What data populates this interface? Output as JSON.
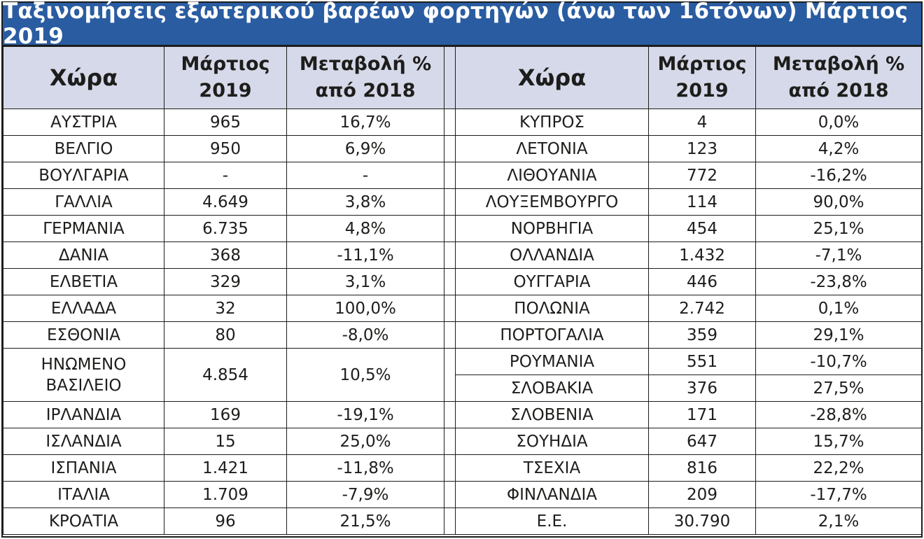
{
  "title": "Ταξινομήσεις εξωτερικού βαρέων φορτηγών (άνω των 16τόνων) Μάρτιος 2019",
  "headers": {
    "country": "Χώρα",
    "month_line1": "Μάρτιος",
    "month_line2": "2019",
    "change_line1": "Μεταβολή %",
    "change_line2": "από 2018"
  },
  "left_rows": [
    {
      "country": "ΑΥΣΤΡΙΑ",
      "value": "965",
      "change": "16,7%"
    },
    {
      "country": "ΒΕΛΓΙΟ",
      "value": "950",
      "change": "6,9%"
    },
    {
      "country": "ΒΟΥΛΓΑΡΙΑ",
      "value": "-",
      "change": "-"
    },
    {
      "country": "ΓΑΛΛΙΑ",
      "value": "4.649",
      "change": "3,8%"
    },
    {
      "country": "ΓΕΡΜΑΝΙΑ",
      "value": "6.735",
      "change": "4,8%"
    },
    {
      "country": "ΔΑΝΙΑ",
      "value": "368",
      "change": "-11,1%"
    },
    {
      "country": "ΕΛΒΕΤΙΑ",
      "value": "329",
      "change": "3,1%"
    },
    {
      "country": "ΕΛΛΑΔΑ",
      "value": "32",
      "change": "100,0%"
    },
    {
      "country": "ΕΣΘΟΝΙΑ",
      "value": "80",
      "change": "-8,0%"
    },
    {
      "country_line1": "ΗΝΩΜΕΝΟ",
      "country_line2": "ΒΑΣΙΛΕΙΟ",
      "value": "4.854",
      "change": "10,5%"
    },
    {
      "country": "ΙΡΛΑΝΔΙΑ",
      "value": "169",
      "change": "-19,1%"
    },
    {
      "country": "ΙΣΛΑΝΔΙΑ",
      "value": "15",
      "change": "25,0%"
    },
    {
      "country": "ΙΣΠΑΝΙΑ",
      "value": "1.421",
      "change": "-11,8%"
    },
    {
      "country": "ΙΤΑΛΙΑ",
      "value": "1.709",
      "change": "-7,9%"
    },
    {
      "country": "ΚΡΟΑΤΙΑ",
      "value": "96",
      "change": "21,5%"
    }
  ],
  "right_rows": [
    {
      "country": "ΚΥΠΡΟΣ",
      "value": "4",
      "change": "0,0%"
    },
    {
      "country": "ΛΕΤΟΝΙΑ",
      "value": "123",
      "change": "4,2%"
    },
    {
      "country": "ΛΙΘΟΥΑΝΙΑ",
      "value": "772",
      "change": "-16,2%"
    },
    {
      "country": "ΛΟΥΞΕΜΒΟΥΡΓΟ",
      "value": "114",
      "change": "90,0%"
    },
    {
      "country": "ΝΟΡΒΗΓΙΑ",
      "value": "454",
      "change": "25,1%"
    },
    {
      "country": "ΟΛΛΑΝΔΙΑ",
      "value": "1.432",
      "change": "-7,1%"
    },
    {
      "country": "ΟΥΓΓΑΡΙΑ",
      "value": "446",
      "change": "-23,8%"
    },
    {
      "country": "ΠΟΛΩΝΙΑ",
      "value": "2.742",
      "change": "0,1%"
    },
    {
      "country": "ΠΟΡΤΟΓΑΛΙΑ",
      "value": "359",
      "change": "29,1%"
    },
    {
      "country": "ΡΟΥΜΑΝΙΑ",
      "value": "551",
      "change": "-10,7%"
    },
    {
      "country": "ΣΛΟΒΑΚΙΑ",
      "value": "376",
      "change": "27,5%"
    },
    {
      "country": "ΣΛΟΒΕΝΙΑ",
      "value": "171",
      "change": "-28,8%"
    },
    {
      "country": "ΣΟΥΗΔΙΑ",
      "value": "647",
      "change": "15,7%"
    },
    {
      "country": "ΤΣΕΧΙΑ",
      "value": "816",
      "change": "22,2%"
    },
    {
      "country": "ΦΙΝΛΑΝΔΙΑ",
      "value": "209",
      "change": "-17,7%"
    },
    {
      "country": "Ε.Ε.",
      "value": "30.790",
      "change": "2,1%"
    }
  ],
  "colors": {
    "title_bg": "#2a5ca1",
    "title_text": "#ffffff",
    "header_bg": "#d6d9e9",
    "border": "#1d1d1b"
  }
}
